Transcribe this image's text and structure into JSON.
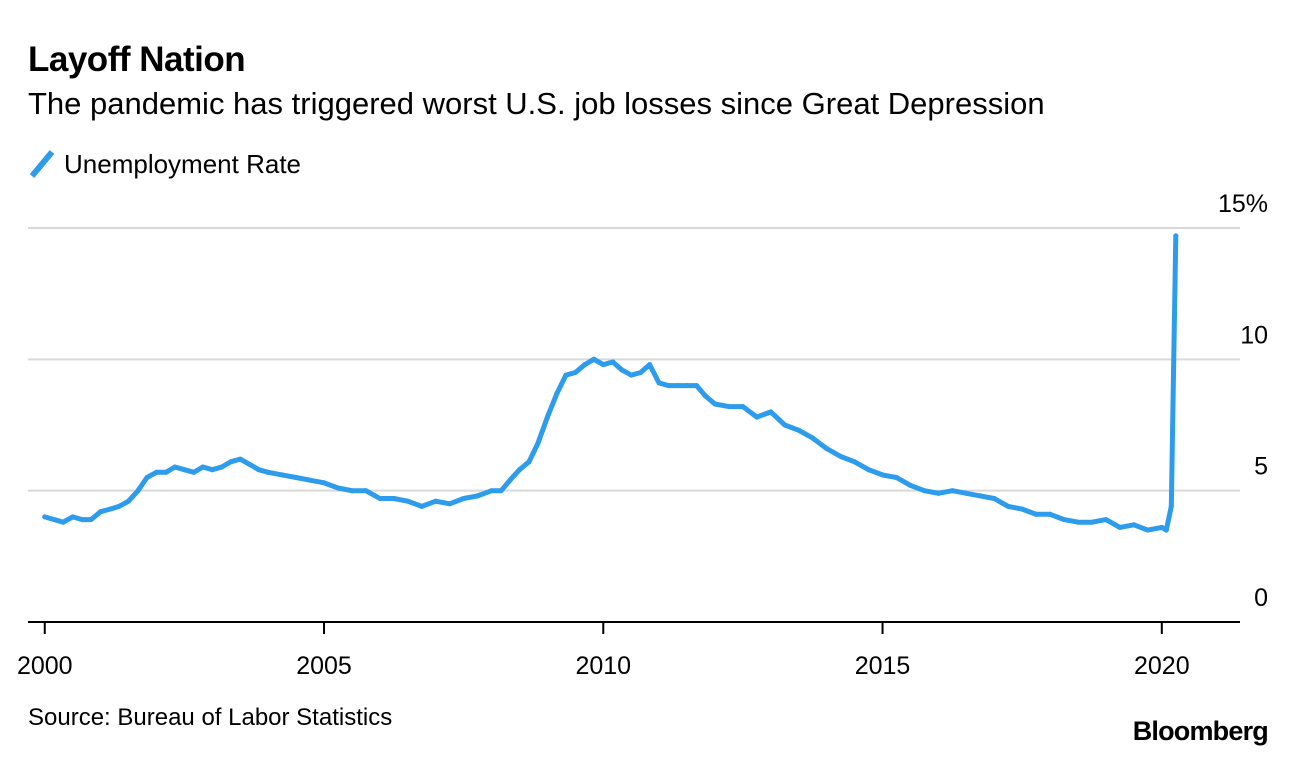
{
  "header": {
    "title": "Layoff Nation",
    "subtitle": "The pandemic has triggered worst U.S. job losses since Great Depression"
  },
  "legend": {
    "label": "Unemployment Rate",
    "icon": "diagonal-line-swatch"
  },
  "footer": {
    "source": "Source: Bureau of Labor Statistics",
    "brand": "Bloomberg"
  },
  "colors": {
    "series": "#2e9cec",
    "grid": "#d9d9d9",
    "axis": "#000000"
  },
  "chart_data": {
    "type": "line",
    "title": "Layoff Nation",
    "subtitle": "The pandemic has triggered worst U.S. job losses since Great Depression",
    "xlabel": "",
    "ylabel": "",
    "xlim": [
      1999.7,
      2021.4
    ],
    "ylim": [
      0,
      15
    ],
    "y_ticks": [
      {
        "value": 15,
        "label": "15%"
      },
      {
        "value": 10,
        "label": "10"
      },
      {
        "value": 5,
        "label": "5"
      },
      {
        "value": 0,
        "label": "0"
      }
    ],
    "x_ticks": [
      {
        "value": 2000,
        "label": "2000"
      },
      {
        "value": 2005,
        "label": "2005"
      },
      {
        "value": 2010,
        "label": "2010"
      },
      {
        "value": 2015,
        "label": "2015"
      },
      {
        "value": 2020,
        "label": "2020"
      }
    ],
    "grid": true,
    "y_axis_side": "right",
    "legend_position": "top-left",
    "series": [
      {
        "name": "Unemployment Rate",
        "x": [
          2000.0,
          2000.17,
          2000.33,
          2000.5,
          2000.67,
          2000.83,
          2001.0,
          2001.17,
          2001.33,
          2001.5,
          2001.67,
          2001.83,
          2002.0,
          2002.17,
          2002.33,
          2002.5,
          2002.67,
          2002.83,
          2003.0,
          2003.17,
          2003.33,
          2003.5,
          2003.67,
          2003.83,
          2004.0,
          2004.25,
          2004.5,
          2004.75,
          2005.0,
          2005.25,
          2005.5,
          2005.75,
          2006.0,
          2006.25,
          2006.5,
          2006.75,
          2007.0,
          2007.25,
          2007.5,
          2007.75,
          2008.0,
          2008.17,
          2008.33,
          2008.5,
          2008.67,
          2008.83,
          2009.0,
          2009.17,
          2009.33,
          2009.5,
          2009.67,
          2009.83,
          2010.0,
          2010.17,
          2010.33,
          2010.5,
          2010.67,
          2010.83,
          2011.0,
          2011.17,
          2011.33,
          2011.5,
          2011.67,
          2011.83,
          2012.0,
          2012.25,
          2012.5,
          2012.75,
          2013.0,
          2013.25,
          2013.5,
          2013.75,
          2014.0,
          2014.25,
          2014.5,
          2014.75,
          2015.0,
          2015.25,
          2015.5,
          2015.75,
          2016.0,
          2016.25,
          2016.5,
          2016.75,
          2017.0,
          2017.25,
          2017.5,
          2017.75,
          2018.0,
          2018.25,
          2018.5,
          2018.75,
          2019.0,
          2019.25,
          2019.5,
          2019.75,
          2020.0,
          2020.08,
          2020.17,
          2020.25
        ],
        "values": [
          4.0,
          3.9,
          3.8,
          4.0,
          3.9,
          3.9,
          4.2,
          4.3,
          4.4,
          4.6,
          5.0,
          5.5,
          5.7,
          5.7,
          5.9,
          5.8,
          5.7,
          5.9,
          5.8,
          5.9,
          6.1,
          6.2,
          6.0,
          5.8,
          5.7,
          5.6,
          5.5,
          5.4,
          5.3,
          5.1,
          5.0,
          5.0,
          4.7,
          4.7,
          4.6,
          4.4,
          4.6,
          4.5,
          4.7,
          4.8,
          5.0,
          5.0,
          5.4,
          5.8,
          6.1,
          6.8,
          7.8,
          8.7,
          9.4,
          9.5,
          9.8,
          10.0,
          9.8,
          9.9,
          9.6,
          9.4,
          9.5,
          9.8,
          9.1,
          9.0,
          9.0,
          9.0,
          9.0,
          8.6,
          8.3,
          8.2,
          8.2,
          7.8,
          8.0,
          7.5,
          7.3,
          7.0,
          6.6,
          6.3,
          6.1,
          5.8,
          5.6,
          5.5,
          5.2,
          5.0,
          4.9,
          5.0,
          4.9,
          4.8,
          4.7,
          4.4,
          4.3,
          4.1,
          4.1,
          3.9,
          3.8,
          3.8,
          3.9,
          3.6,
          3.7,
          3.5,
          3.6,
          3.5,
          4.4,
          14.7
        ]
      }
    ]
  }
}
